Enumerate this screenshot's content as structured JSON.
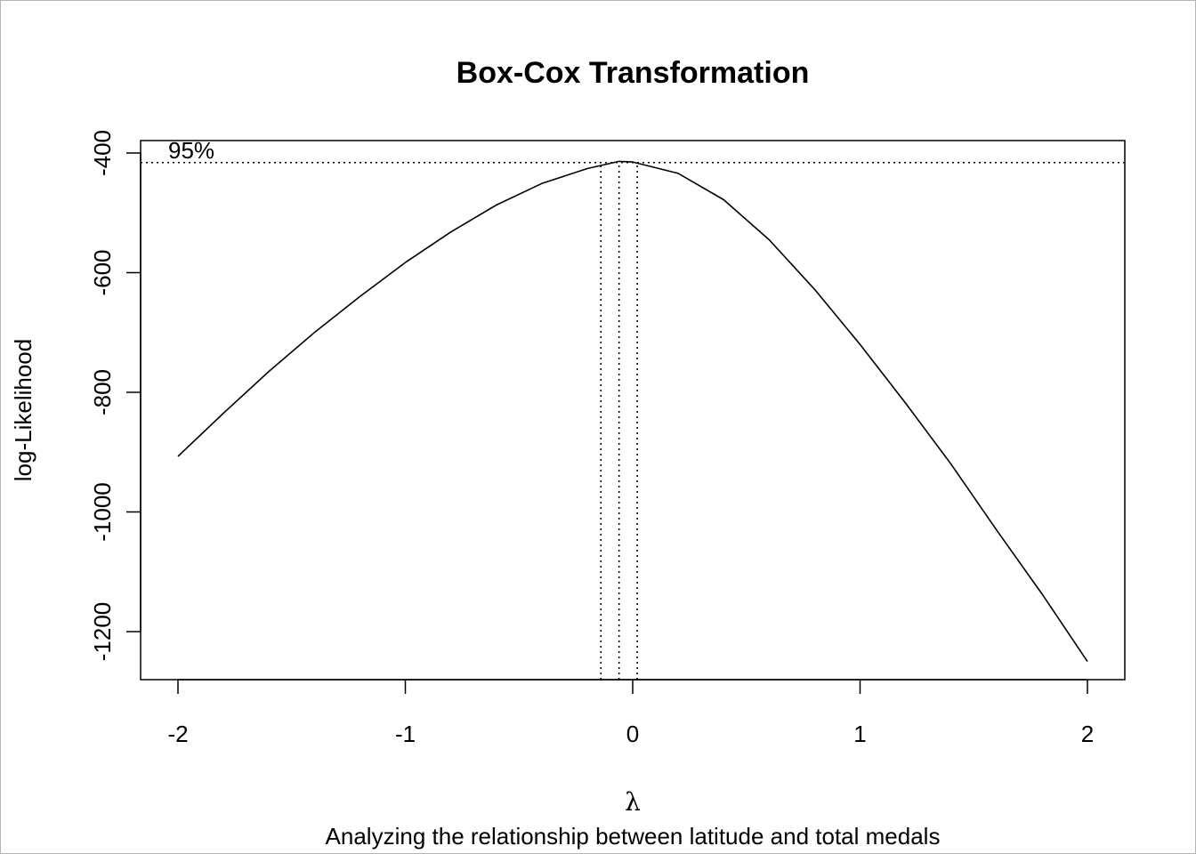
{
  "chart_data": {
    "type": "line",
    "title": "Box-Cox Transformation",
    "xlabel": "λ",
    "ylabel": "log-Likelihood",
    "subtitle": "Analyzing the relationship between latitude and total medals",
    "xlim": [
      -2,
      2
    ],
    "ylim": [
      -1200,
      -400
    ],
    "x_ticks": [
      -2,
      -1,
      0,
      1,
      2
    ],
    "x_tick_labels": [
      "-2",
      "-1",
      "0",
      "1",
      "2"
    ],
    "y_ticks": [
      -400,
      -600,
      -800,
      -1000,
      -1200
    ],
    "y_tick_labels": [
      "-400",
      "-600",
      "-800",
      "-1000",
      "-1200"
    ],
    "grid": false,
    "series": [
      {
        "x": [
          -2.0,
          -1.8,
          -1.6,
          -1.4,
          -1.2,
          -1.0,
          -0.8,
          -0.6,
          -0.4,
          -0.2,
          -0.06,
          0.0,
          0.2,
          0.4,
          0.6,
          0.8,
          1.0,
          1.2,
          1.4,
          1.6,
          1.8,
          2.0
        ],
        "y": [
          -907,
          -835,
          -765,
          -700,
          -640,
          -583,
          -532,
          -487,
          -451,
          -426,
          -414,
          -415,
          -434,
          -478,
          -545,
          -628,
          -720,
          -818,
          -920,
          -1030,
          -1137,
          -1250
        ]
      }
    ],
    "ci": {
      "label": "95%",
      "threshold": -416,
      "lambda_hat": -0.06,
      "lower": -0.14,
      "upper": 0.02
    }
  }
}
